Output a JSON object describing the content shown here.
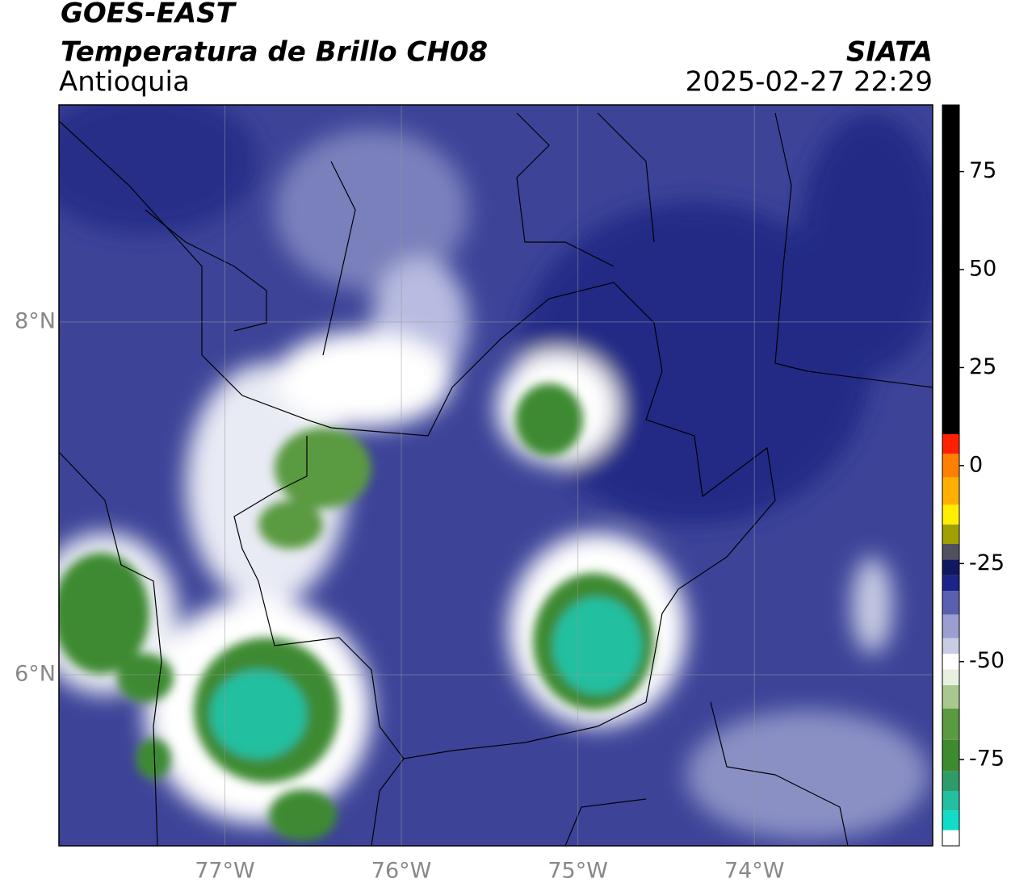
{
  "header": {
    "satellite": "GOES-EAST",
    "product": "Temperatura de Brillo CH08",
    "region": "Antioquia",
    "source": "SIATA",
    "timestamp": "2025-02-27 22:29"
  },
  "map": {
    "xlim": [
      -77.94,
      -72.99
    ],
    "ylim": [
      5.03,
      9.23
    ],
    "xticks": [
      {
        "value": -77,
        "label": "77°W"
      },
      {
        "value": -76,
        "label": "76°W"
      },
      {
        "value": -75,
        "label": "75°W"
      },
      {
        "value": -74,
        "label": "74°W"
      }
    ],
    "yticks": [
      {
        "value": 8,
        "label": "8°N"
      },
      {
        "value": 6,
        "label": "6°N"
      }
    ],
    "grid": true
  },
  "colorbar": {
    "lim": [
      -97,
      92
    ],
    "ticks": [
      75,
      50,
      25,
      0,
      -25,
      -50,
      -75
    ],
    "segments": [
      {
        "from": -97,
        "to": -93,
        "color": "#ffffff"
      },
      {
        "from": -93,
        "to": -88,
        "color": "#10dcc8"
      },
      {
        "from": -88,
        "to": -83,
        "color": "#22c0a0"
      },
      {
        "from": -83,
        "to": -78,
        "color": "#2e9c6a"
      },
      {
        "from": -78,
        "to": -70,
        "color": "#3e8a30"
      },
      {
        "from": -70,
        "to": -62,
        "color": "#5a9a40"
      },
      {
        "from": -62,
        "to": -56,
        "color": "#a8c890"
      },
      {
        "from": -56,
        "to": -52,
        "color": "#e8f0e0"
      },
      {
        "from": -52,
        "to": -48,
        "color": "#ffffff"
      },
      {
        "from": -48,
        "to": -44,
        "color": "#c8cce4"
      },
      {
        "from": -44,
        "to": -38,
        "color": "#9a9ed0"
      },
      {
        "from": -38,
        "to": -32,
        "color": "#5a60b0"
      },
      {
        "from": -32,
        "to": -28,
        "color": "#1c2488"
      },
      {
        "from": -28,
        "to": -24,
        "color": "#101860"
      },
      {
        "from": -24,
        "to": -20,
        "color": "#505060"
      },
      {
        "from": -20,
        "to": -15,
        "color": "#a0a000"
      },
      {
        "from": -15,
        "to": -10,
        "color": "#ffee00"
      },
      {
        "from": -10,
        "to": -3,
        "color": "#ffb000"
      },
      {
        "from": -3,
        "to": 3,
        "color": "#ff8000"
      },
      {
        "from": 3,
        "to": 8,
        "color": "#ff2000"
      },
      {
        "from": 8,
        "to": 92,
        "color": "#000000"
      }
    ]
  }
}
